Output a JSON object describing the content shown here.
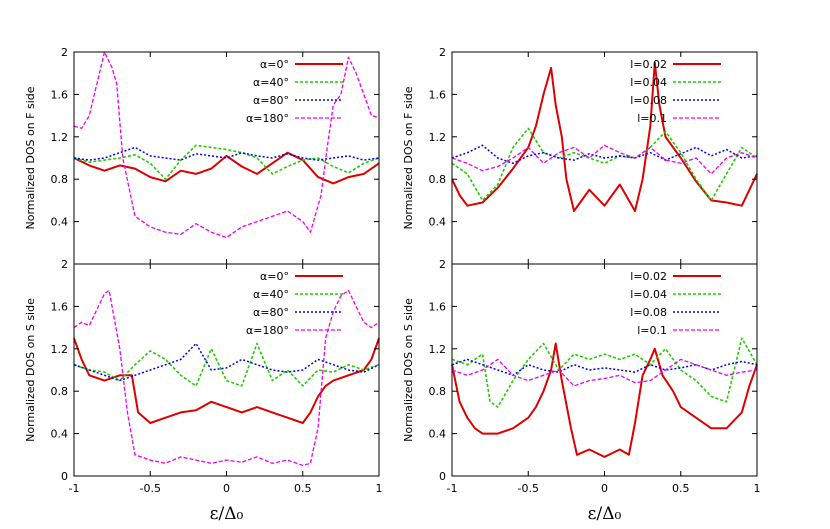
{
  "chart_data": [
    {
      "id": "tl",
      "type": "line",
      "ylabel": "Normalized DOS on F side",
      "xlim": [
        -1,
        1
      ],
      "ylim": [
        0,
        2
      ],
      "yticks": [
        "2",
        "1.6",
        "1.2",
        "0.8",
        "0.4"
      ],
      "xticks": [],
      "legend_position": "top-right",
      "series": [
        {
          "name": "α=0°",
          "color": "#dd0000",
          "dash": "",
          "width": 2,
          "x": [
            -1,
            -0.9,
            -0.8,
            -0.7,
            -0.6,
            -0.5,
            -0.4,
            -0.3,
            -0.2,
            -0.1,
            0,
            0.1,
            0.2,
            0.3,
            0.4,
            0.5,
            0.6,
            0.7,
            0.8,
            0.9,
            1
          ],
          "y": [
            1.0,
            0.93,
            0.88,
            0.93,
            0.9,
            0.82,
            0.78,
            0.88,
            0.85,
            0.9,
            1.02,
            0.92,
            0.85,
            0.95,
            1.05,
            0.98,
            0.82,
            0.76,
            0.82,
            0.85,
            0.95
          ]
        },
        {
          "name": "α=40°",
          "color": "#22cc00",
          "dash": "3,2",
          "width": 1.6,
          "x": [
            -1,
            -0.9,
            -0.8,
            -0.7,
            -0.6,
            -0.5,
            -0.4,
            -0.3,
            -0.2,
            -0.1,
            0,
            0.1,
            0.2,
            0.3,
            0.4,
            0.5,
            0.6,
            0.7,
            0.8,
            0.9,
            1
          ],
          "y": [
            1.0,
            0.96,
            0.98,
            1.0,
            1.03,
            0.95,
            0.8,
            0.98,
            1.12,
            1.1,
            1.08,
            1.05,
            1.0,
            0.85,
            0.92,
            0.98,
            1.0,
            0.92,
            0.86,
            0.95,
            1.0
          ]
        },
        {
          "name": "α=80°",
          "color": "#0000ee",
          "dash": "2,2",
          "width": 1.5,
          "x": [
            -1,
            -0.9,
            -0.8,
            -0.7,
            -0.6,
            -0.5,
            -0.4,
            -0.3,
            -0.2,
            -0.1,
            0,
            0.1,
            0.2,
            0.3,
            0.4,
            0.5,
            0.6,
            0.7,
            0.8,
            0.9,
            1
          ],
          "y": [
            1.0,
            0.98,
            1.0,
            1.05,
            1.1,
            1.02,
            1.0,
            0.98,
            1.04,
            1.02,
            1.0,
            1.05,
            1.02,
            1.0,
            1.04,
            1.0,
            0.98,
            1.0,
            1.02,
            0.98,
            1.0
          ]
        },
        {
          "name": "α=180°",
          "color": "#ee00ee",
          "dash": "4,2",
          "width": 1.3,
          "x": [
            -1,
            -0.95,
            -0.9,
            -0.85,
            -0.8,
            -0.75,
            -0.72,
            -0.68,
            -0.6,
            -0.5,
            -0.4,
            -0.3,
            -0.2,
            -0.1,
            0,
            0.1,
            0.2,
            0.3,
            0.4,
            0.5,
            0.55,
            0.62,
            0.66,
            0.7,
            0.75,
            0.8,
            0.85,
            0.9,
            0.95,
            1
          ],
          "y": [
            1.3,
            1.28,
            1.4,
            1.7,
            2.0,
            1.85,
            1.7,
            1.0,
            0.45,
            0.35,
            0.3,
            0.28,
            0.38,
            0.3,
            0.25,
            0.35,
            0.4,
            0.45,
            0.5,
            0.4,
            0.3,
            0.65,
            1.1,
            1.5,
            1.6,
            1.95,
            1.8,
            1.6,
            1.4,
            1.38
          ]
        }
      ]
    },
    {
      "id": "tr",
      "type": "line",
      "ylabel": "Normalized DOS on F side",
      "xlim": [
        -1,
        1
      ],
      "ylim": [
        0,
        2
      ],
      "yticks": [
        "2",
        "1.6",
        "1.2",
        "0.8",
        "0.4"
      ],
      "xticks": [],
      "legend_position": "top-right",
      "series": [
        {
          "name": "l=0.02",
          "color": "#dd0000",
          "dash": "",
          "width": 2,
          "x": [
            -1,
            -0.95,
            -0.9,
            -0.8,
            -0.7,
            -0.6,
            -0.5,
            -0.45,
            -0.4,
            -0.35,
            -0.32,
            -0.28,
            -0.25,
            -0.2,
            -0.1,
            0,
            0.1,
            0.2,
            0.25,
            0.3,
            0.33,
            0.36,
            0.4,
            0.5,
            0.6,
            0.7,
            0.8,
            0.9,
            1
          ],
          "y": [
            0.8,
            0.65,
            0.55,
            0.58,
            0.72,
            0.9,
            1.1,
            1.3,
            1.6,
            1.85,
            1.5,
            1.2,
            0.8,
            0.5,
            0.7,
            0.55,
            0.75,
            0.5,
            0.8,
            1.3,
            1.9,
            1.5,
            1.2,
            1.0,
            0.78,
            0.6,
            0.58,
            0.55,
            0.85
          ]
        },
        {
          "name": "l=0.04",
          "color": "#22cc00",
          "dash": "3,2",
          "width": 1.6,
          "x": [
            -1,
            -0.9,
            -0.8,
            -0.7,
            -0.6,
            -0.5,
            -0.4,
            -0.3,
            -0.2,
            -0.1,
            0,
            0.1,
            0.2,
            0.3,
            0.4,
            0.5,
            0.6,
            0.7,
            0.8,
            0.9,
            1
          ],
          "y": [
            0.95,
            0.85,
            0.6,
            0.75,
            1.1,
            1.28,
            1.05,
            1.0,
            1.05,
            1.0,
            0.95,
            1.02,
            1.0,
            1.1,
            1.25,
            1.05,
            0.8,
            0.6,
            0.85,
            1.1,
            1.0
          ]
        },
        {
          "name": "l=0.08",
          "color": "#0000ee",
          "dash": "2,2",
          "width": 1.5,
          "x": [
            -1,
            -0.9,
            -0.8,
            -0.7,
            -0.6,
            -0.5,
            -0.4,
            -0.3,
            -0.2,
            -0.1,
            0,
            0.1,
            0.2,
            0.3,
            0.4,
            0.5,
            0.6,
            0.7,
            0.8,
            0.9,
            1
          ],
          "y": [
            1.0,
            1.05,
            1.12,
            1.0,
            0.95,
            1.02,
            1.05,
            1.0,
            0.98,
            1.04,
            1.0,
            1.02,
            1.0,
            1.05,
            0.98,
            1.04,
            1.1,
            1.02,
            1.08,
            1.0,
            1.02
          ]
        },
        {
          "name": "l=0.1",
          "color": "#ee00ee",
          "dash": "4,2",
          "width": 1.3,
          "x": [
            -1,
            -0.9,
            -0.8,
            -0.7,
            -0.6,
            -0.5,
            -0.4,
            -0.3,
            -0.2,
            -0.1,
            0,
            0.1,
            0.2,
            0.3,
            0.4,
            0.5,
            0.6,
            0.7,
            0.8,
            0.9,
            1
          ],
          "y": [
            1.0,
            0.95,
            0.88,
            0.92,
            1.0,
            1.1,
            0.95,
            1.05,
            1.1,
            1.0,
            1.12,
            1.05,
            1.0,
            1.1,
            0.98,
            0.95,
            1.0,
            0.85,
            1.0,
            1.05,
            1.0
          ]
        }
      ]
    },
    {
      "id": "bl",
      "type": "line",
      "ylabel": "Normalized DOS on S side",
      "xlim": [
        -1,
        1
      ],
      "ylim": [
        0,
        2
      ],
      "yticks": [
        "2",
        "1.6",
        "1.2",
        "0.8",
        "0.4",
        "0"
      ],
      "xticks": [
        "-1",
        "-0.5",
        "0",
        "0.5",
        "1"
      ],
      "xlabel": "ε/Δ₀",
      "legend_position": "top-right",
      "series": [
        {
          "name": "α=0°",
          "color": "#dd0000",
          "dash": "",
          "width": 2,
          "x": [
            -1,
            -0.95,
            -0.9,
            -0.8,
            -0.7,
            -0.62,
            -0.58,
            -0.5,
            -0.4,
            -0.3,
            -0.2,
            -0.1,
            0,
            0.1,
            0.2,
            0.3,
            0.4,
            0.5,
            0.55,
            0.6,
            0.65,
            0.7,
            0.8,
            0.9,
            0.95,
            1
          ],
          "y": [
            1.3,
            1.1,
            0.95,
            0.9,
            0.95,
            0.95,
            0.6,
            0.5,
            0.55,
            0.6,
            0.62,
            0.7,
            0.65,
            0.6,
            0.65,
            0.6,
            0.55,
            0.5,
            0.6,
            0.75,
            0.85,
            0.9,
            0.95,
            1.0,
            1.1,
            1.3
          ]
        },
        {
          "name": "α=40°",
          "color": "#22cc00",
          "dash": "3,2",
          "width": 1.6,
          "x": [
            -1,
            -0.9,
            -0.8,
            -0.7,
            -0.6,
            -0.5,
            -0.4,
            -0.3,
            -0.2,
            -0.1,
            0,
            0.1,
            0.2,
            0.3,
            0.4,
            0.5,
            0.6,
            0.7,
            0.8,
            0.9,
            1
          ],
          "y": [
            1.05,
            1.0,
            0.98,
            0.9,
            1.05,
            1.18,
            1.1,
            0.95,
            0.85,
            1.2,
            0.9,
            0.85,
            1.25,
            0.9,
            1.0,
            0.85,
            1.0,
            0.98,
            1.05,
            1.0,
            1.05
          ]
        },
        {
          "name": "α=80°",
          "color": "#0000ee",
          "dash": "2,2",
          "width": 1.5,
          "x": [
            -1,
            -0.9,
            -0.8,
            -0.7,
            -0.6,
            -0.5,
            -0.4,
            -0.3,
            -0.2,
            -0.1,
            0,
            0.1,
            0.2,
            0.3,
            0.4,
            0.5,
            0.6,
            0.7,
            0.8,
            0.9,
            1
          ],
          "y": [
            1.05,
            1.0,
            0.95,
            0.9,
            0.95,
            1.0,
            1.05,
            1.1,
            1.25,
            1.0,
            1.02,
            1.1,
            1.05,
            1.0,
            0.98,
            1.0,
            1.1,
            1.05,
            1.0,
            0.98,
            1.05
          ]
        },
        {
          "name": "α=180°",
          "color": "#ee00ee",
          "dash": "4,2",
          "width": 1.3,
          "x": [
            -1,
            -0.95,
            -0.9,
            -0.8,
            -0.77,
            -0.7,
            -0.65,
            -0.6,
            -0.5,
            -0.4,
            -0.3,
            -0.2,
            -0.1,
            0,
            0.1,
            0.2,
            0.3,
            0.4,
            0.5,
            0.55,
            0.6,
            0.65,
            0.7,
            0.75,
            0.8,
            0.85,
            0.9,
            0.95,
            1
          ],
          "y": [
            1.4,
            1.45,
            1.42,
            1.72,
            1.75,
            1.2,
            0.6,
            0.2,
            0.15,
            0.12,
            0.18,
            0.15,
            0.12,
            0.15,
            0.13,
            0.18,
            0.12,
            0.15,
            0.1,
            0.12,
            0.45,
            1.3,
            1.55,
            1.7,
            1.75,
            1.6,
            1.45,
            1.4,
            1.45
          ]
        }
      ]
    },
    {
      "id": "br",
      "type": "line",
      "ylabel": "Normalized DOS on S side",
      "xlim": [
        -1,
        1
      ],
      "ylim": [
        0,
        2
      ],
      "yticks": [
        "2",
        "1.6",
        "1.2",
        "0.8",
        "0.4",
        "0"
      ],
      "xticks": [
        "-1",
        "-0.5",
        "0",
        "0.5",
        "1"
      ],
      "xlabel": "ε/Δ₀",
      "legend_position": "top-right",
      "series": [
        {
          "name": "l=0.02",
          "color": "#dd0000",
          "dash": "",
          "width": 2,
          "x": [
            -1,
            -0.95,
            -0.9,
            -0.85,
            -0.8,
            -0.7,
            -0.6,
            -0.5,
            -0.45,
            -0.4,
            -0.35,
            -0.32,
            -0.28,
            -0.22,
            -0.18,
            -0.1,
            0,
            0.1,
            0.16,
            0.2,
            0.25,
            0.3,
            0.33,
            0.38,
            0.45,
            0.5,
            0.6,
            0.7,
            0.8,
            0.9,
            0.95,
            1
          ],
          "y": [
            1.05,
            0.7,
            0.55,
            0.45,
            0.4,
            0.4,
            0.45,
            0.55,
            0.65,
            0.8,
            1.0,
            1.25,
            0.9,
            0.45,
            0.2,
            0.25,
            0.18,
            0.25,
            0.2,
            0.5,
            0.95,
            1.1,
            1.2,
            0.95,
            0.8,
            0.65,
            0.55,
            0.45,
            0.45,
            0.6,
            0.85,
            1.05
          ]
        },
        {
          "name": "l=0.04",
          "color": "#22cc00",
          "dash": "3,2",
          "width": 1.6,
          "x": [
            -1,
            -0.9,
            -0.8,
            -0.75,
            -0.7,
            -0.6,
            -0.5,
            -0.4,
            -0.3,
            -0.2,
            -0.1,
            0,
            0.1,
            0.2,
            0.3,
            0.4,
            0.5,
            0.6,
            0.7,
            0.8,
            0.9,
            1
          ],
          "y": [
            1.1,
            1.05,
            1.15,
            0.7,
            0.65,
            0.9,
            1.1,
            1.25,
            1.0,
            1.15,
            1.1,
            1.15,
            1.1,
            1.15,
            1.05,
            1.2,
            1.0,
            0.9,
            0.75,
            0.7,
            1.3,
            1.05
          ]
        },
        {
          "name": "l=0.08",
          "color": "#0000ee",
          "dash": "2,2",
          "width": 1.5,
          "x": [
            -1,
            -0.9,
            -0.8,
            -0.7,
            -0.6,
            -0.5,
            -0.4,
            -0.3,
            -0.2,
            -0.1,
            0,
            0.1,
            0.2,
            0.3,
            0.4,
            0.5,
            0.6,
            0.7,
            0.8,
            0.9,
            1
          ],
          "y": [
            1.05,
            1.1,
            1.05,
            1.0,
            0.95,
            1.05,
            1.0,
            0.98,
            1.05,
            1.0,
            1.02,
            1.0,
            0.98,
            1.05,
            1.0,
            1.02,
            1.05,
            1.0,
            1.05,
            1.08,
            1.05
          ]
        },
        {
          "name": "l=0.1",
          "color": "#ee00ee",
          "dash": "4,2",
          "width": 1.3,
          "x": [
            -1,
            -0.9,
            -0.8,
            -0.7,
            -0.6,
            -0.5,
            -0.4,
            -0.3,
            -0.2,
            -0.1,
            0,
            0.1,
            0.2,
            0.3,
            0.4,
            0.5,
            0.6,
            0.7,
            0.8,
            0.9,
            1
          ],
          "y": [
            1.0,
            0.95,
            1.0,
            1.1,
            0.95,
            0.9,
            0.95,
            1.0,
            0.85,
            0.9,
            0.92,
            0.95,
            0.88,
            0.9,
            1.0,
            1.1,
            1.05,
            1.0,
            0.95,
            0.98,
            1.0
          ]
        }
      ]
    }
  ]
}
